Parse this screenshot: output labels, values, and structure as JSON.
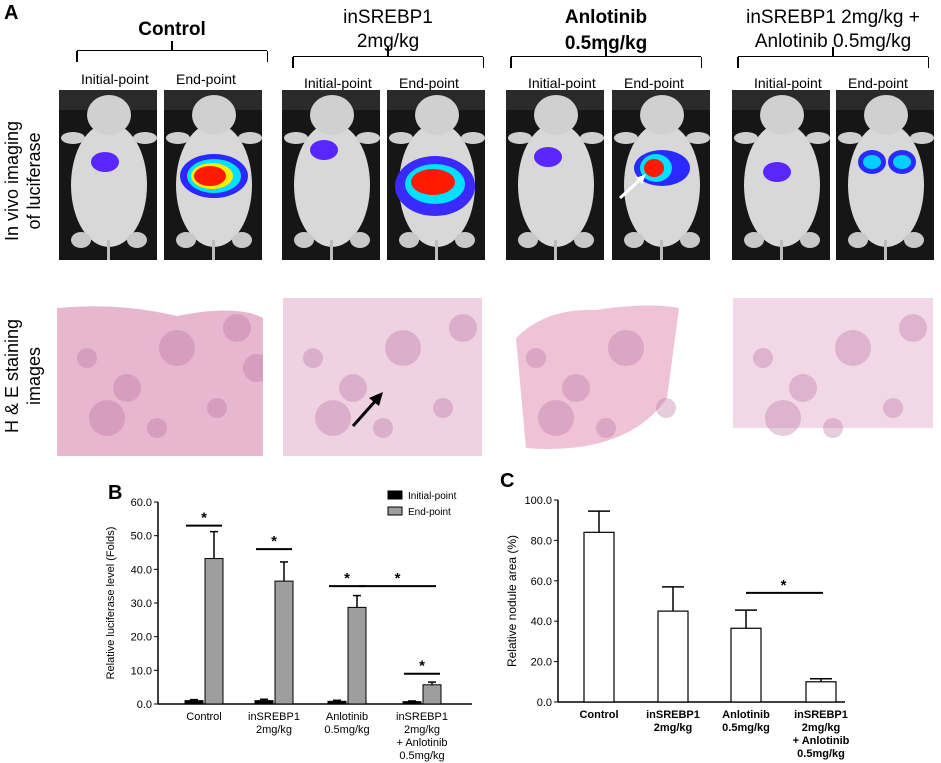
{
  "panel_a": {
    "letter": "A",
    "groups": [
      {
        "title_lines": [
          "Control"
        ],
        "bold": true,
        "initial": "Initial-point",
        "end": "End-point"
      },
      {
        "title_lines": [
          "inSREBP1",
          "2mg/kg"
        ],
        "bold": false,
        "initial": "Initial-point",
        "end": "End-point"
      },
      {
        "title_lines": [
          "Anlotinib",
          "0.5mg/kg"
        ],
        "bold": true,
        "initial": "Initial-point",
        "end": "End-point"
      },
      {
        "title_lines": [
          "inSREBP1 2mg/kg +",
          "Anlotinib 0.5mg/kg"
        ],
        "bold": false,
        "initial": "Initial-point",
        "end": "End-point"
      }
    ],
    "row1_label_lines": [
      "In vivo imaging",
      "of luciferase"
    ],
    "row2_label_lines": [
      "H & E staining",
      "images"
    ]
  },
  "chart_data": [
    {
      "type": "bar",
      "panel": "B",
      "ylabel": "Relative luciferase level (Folds)",
      "ylim": [
        0,
        60
      ],
      "yticks": [
        "0.0",
        "10.0",
        "20.0",
        "30.0",
        "40.0",
        "50.0",
        "60.0"
      ],
      "categories": [
        [
          "Control"
        ],
        [
          "inSREBP1",
          "2mg/kg"
        ],
        [
          "Anlotinib",
          "0.5mg/kg"
        ],
        [
          "inSREBP1",
          "2mg/kg",
          "+ Anlotinib",
          "0.5mg/kg"
        ]
      ],
      "legend_position": "top-right",
      "series": [
        {
          "name": "Initial-point",
          "color": "#000000",
          "values": [
            1.0,
            1.0,
            0.8,
            0.7
          ],
          "errors": [
            0.3,
            0.4,
            0.3,
            0.2
          ]
        },
        {
          "name": "End-point",
          "color": "#9e9e9e",
          "values": [
            43.2,
            36.5,
            28.7,
            5.7
          ],
          "errors": [
            8.0,
            5.7,
            3.5,
            0.8
          ]
        }
      ],
      "significance": [
        "*",
        "*",
        "*",
        "*",
        "*"
      ]
    },
    {
      "type": "bar",
      "panel": "C",
      "ylabel": "Relative nodule area (%)",
      "ylim": [
        0,
        100
      ],
      "yticks": [
        "0.0",
        "20.0",
        "40.0",
        "60.0",
        "80.0",
        "100.0"
      ],
      "categories": [
        [
          "Control"
        ],
        [
          "inSREBP1",
          "2mg/kg"
        ],
        [
          "Anlotinib",
          "0.5mg/kg"
        ],
        [
          "inSREBP1",
          "2mg/kg",
          "+ Anlotinib",
          "0.5mg/kg"
        ]
      ],
      "series": [
        {
          "color": "#ffffff",
          "values": [
            84.0,
            45.0,
            36.5,
            10.0
          ],
          "errors": [
            10.5,
            12.0,
            9.0,
            1.5
          ]
        }
      ],
      "significance": [
        "*"
      ]
    }
  ]
}
